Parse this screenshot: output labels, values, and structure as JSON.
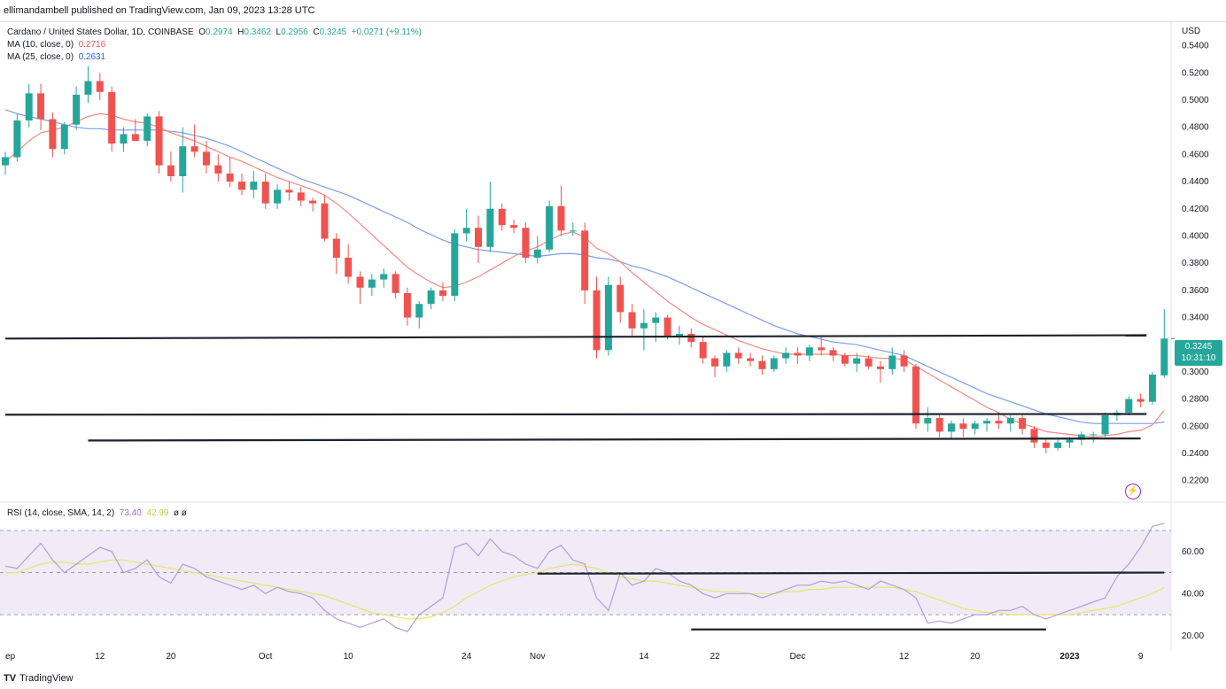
{
  "header": {
    "published": "ellimandambell published on TradingView.com, Jan 09, 2023 13:28 UTC"
  },
  "legend": {
    "symbol": "Cardano / United States Dollar, 1D, COINBASE",
    "o_label": "O",
    "o": "0.2974",
    "h_label": "H",
    "h": "0.3462",
    "l_label": "L",
    "l": "0.2956",
    "c_label": "C",
    "c": "0.3245",
    "change": "+0.0271 (+9.11%)",
    "ma10_label": "MA (10, close, 0)",
    "ma10_value": "0.2716",
    "ma25_label": "MA (25, close, 0)",
    "ma25_value": "0.2631"
  },
  "rsi_legend": {
    "label": "RSI (14, close, SMA, 14, 2)",
    "rsi": "73.40",
    "sma": "42.99",
    "extra": "ø ø"
  },
  "currency": "USD",
  "price_badge": {
    "price": "0.3245",
    "countdown": "10:31:10"
  },
  "footer": {
    "logo": "TV",
    "brand": "TradingView"
  },
  "colors": {
    "up": "#26a69a",
    "down": "#ef5350",
    "ma10": "#f28b82",
    "ma25": "#7b9cf0",
    "rsi": "#b39ddb",
    "rsi_sma": "#e6e66b"
  },
  "chart_data": [
    {
      "type": "candlestick",
      "title": "Cardano / United States Dollar, 1D, COINBASE",
      "ylim": [
        0.21,
        0.545
      ],
      "yticks": [
        "0.5400",
        "0.5200",
        "0.5000",
        "0.4800",
        "0.4600",
        "0.4400",
        "0.4200",
        "0.4000",
        "0.3800",
        "0.3600",
        "0.3400",
        "0.3200",
        "0.3000",
        "0.2800",
        "0.2600",
        "0.2400",
        "0.2200"
      ],
      "ytick_values": [
        0.54,
        0.52,
        0.5,
        0.48,
        0.46,
        0.44,
        0.42,
        0.4,
        0.38,
        0.36,
        0.34,
        0.32,
        0.3,
        0.28,
        0.26,
        0.24,
        0.22
      ],
      "xticks": [
        "ep",
        "12",
        "20",
        "Oct",
        "10",
        "24",
        "Nov",
        "14",
        "22",
        "Dec",
        "12",
        "20",
        "2023",
        "9"
      ],
      "xtick_index": [
        0,
        8,
        14,
        22,
        29,
        39,
        45,
        54,
        60,
        67,
        76,
        82,
        90,
        96
      ],
      "candles": [
        [
          0.452,
          0.462,
          0.445,
          0.458
        ],
        [
          0.458,
          0.49,
          0.455,
          0.485
        ],
        [
          0.485,
          0.512,
          0.48,
          0.505
        ],
        [
          0.505,
          0.512,
          0.478,
          0.486
        ],
        [
          0.486,
          0.491,
          0.458,
          0.464
        ],
        [
          0.464,
          0.484,
          0.46,
          0.482
        ],
        [
          0.482,
          0.51,
          0.478,
          0.504
        ],
        [
          0.504,
          0.525,
          0.498,
          0.514
        ],
        [
          0.514,
          0.52,
          0.5,
          0.506
        ],
        [
          0.506,
          0.51,
          0.462,
          0.468
        ],
        [
          0.468,
          0.48,
          0.462,
          0.475
        ],
        [
          0.475,
          0.486,
          0.47,
          0.47
        ],
        [
          0.47,
          0.49,
          0.466,
          0.488
        ],
        [
          0.488,
          0.492,
          0.446,
          0.452
        ],
        [
          0.452,
          0.462,
          0.44,
          0.444
        ],
        [
          0.444,
          0.48,
          0.432,
          0.466
        ],
        [
          0.466,
          0.482,
          0.458,
          0.462
        ],
        [
          0.462,
          0.47,
          0.446,
          0.452
        ],
        [
          0.452,
          0.46,
          0.44,
          0.446
        ],
        [
          0.446,
          0.458,
          0.436,
          0.44
        ],
        [
          0.44,
          0.446,
          0.43,
          0.434
        ],
        [
          0.434,
          0.448,
          0.428,
          0.44
        ],
        [
          0.44,
          0.446,
          0.42,
          0.424
        ],
        [
          0.424,
          0.438,
          0.42,
          0.434
        ],
        [
          0.434,
          0.44,
          0.426,
          0.432
        ],
        [
          0.432,
          0.436,
          0.422,
          0.426
        ],
        [
          0.426,
          0.428,
          0.418,
          0.424
        ],
        [
          0.424,
          0.43,
          0.396,
          0.398
        ],
        [
          0.398,
          0.402,
          0.372,
          0.384
        ],
        [
          0.384,
          0.394,
          0.365,
          0.37
        ],
        [
          0.37,
          0.374,
          0.35,
          0.362
        ],
        [
          0.362,
          0.372,
          0.356,
          0.368
        ],
        [
          0.368,
          0.376,
          0.362,
          0.372
        ],
        [
          0.372,
          0.374,
          0.354,
          0.358
        ],
        [
          0.358,
          0.362,
          0.334,
          0.34
        ],
        [
          0.34,
          0.352,
          0.332,
          0.35
        ],
        [
          0.35,
          0.362,
          0.346,
          0.36
        ],
        [
          0.36,
          0.366,
          0.352,
          0.356
        ],
        [
          0.356,
          0.405,
          0.352,
          0.402
        ],
        [
          0.402,
          0.42,
          0.396,
          0.406
        ],
        [
          0.406,
          0.415,
          0.38,
          0.392
        ],
        [
          0.392,
          0.44,
          0.388,
          0.42
        ],
        [
          0.42,
          0.424,
          0.404,
          0.408
        ],
        [
          0.408,
          0.412,
          0.402,
          0.406
        ],
        [
          0.406,
          0.41,
          0.38,
          0.384
        ],
        [
          0.384,
          0.4,
          0.38,
          0.39
        ],
        [
          0.39,
          0.426,
          0.388,
          0.422
        ],
        [
          0.422,
          0.437,
          0.4,
          0.404
        ],
        [
          0.404,
          0.41,
          0.4,
          0.404
        ],
        [
          0.404,
          0.41,
          0.35,
          0.36
        ],
        [
          0.36,
          0.37,
          0.31,
          0.316
        ],
        [
          0.316,
          0.37,
          0.312,
          0.364
        ],
        [
          0.364,
          0.37,
          0.336,
          0.344
        ],
        [
          0.344,
          0.35,
          0.326,
          0.332
        ],
        [
          0.332,
          0.346,
          0.316,
          0.336
        ],
        [
          0.336,
          0.344,
          0.322,
          0.34
        ],
        [
          0.34,
          0.342,
          0.324,
          0.326
        ],
        [
          0.326,
          0.334,
          0.32,
          0.328
        ],
        [
          0.328,
          0.332,
          0.318,
          0.322
        ],
        [
          0.322,
          0.326,
          0.306,
          0.31
        ],
        [
          0.31,
          0.312,
          0.296,
          0.304
        ],
        [
          0.304,
          0.316,
          0.3,
          0.314
        ],
        [
          0.314,
          0.318,
          0.306,
          0.31
        ],
        [
          0.31,
          0.314,
          0.304,
          0.308
        ],
        [
          0.308,
          0.312,
          0.298,
          0.302
        ],
        [
          0.302,
          0.312,
          0.3,
          0.31
        ],
        [
          0.31,
          0.318,
          0.306,
          0.314
        ],
        [
          0.314,
          0.318,
          0.306,
          0.312
        ],
        [
          0.312,
          0.32,
          0.308,
          0.318
        ],
        [
          0.318,
          0.326,
          0.312,
          0.316
        ],
        [
          0.316,
          0.318,
          0.308,
          0.312
        ],
        [
          0.312,
          0.314,
          0.304,
          0.306
        ],
        [
          0.306,
          0.314,
          0.3,
          0.31
        ],
        [
          0.31,
          0.312,
          0.302,
          0.304
        ],
        [
          0.304,
          0.308,
          0.292,
          0.302
        ],
        [
          0.302,
          0.318,
          0.298,
          0.312
        ],
        [
          0.312,
          0.316,
          0.3,
          0.304
        ],
        [
          0.304,
          0.306,
          0.258,
          0.262
        ],
        [
          0.262,
          0.274,
          0.256,
          0.266
        ],
        [
          0.266,
          0.268,
          0.252,
          0.256
        ],
        [
          0.256,
          0.264,
          0.25,
          0.262
        ],
        [
          0.262,
          0.266,
          0.252,
          0.258
        ],
        [
          0.258,
          0.264,
          0.254,
          0.262
        ],
        [
          0.262,
          0.266,
          0.256,
          0.264
        ],
        [
          0.264,
          0.268,
          0.258,
          0.262
        ],
        [
          0.262,
          0.268,
          0.256,
          0.266
        ],
        [
          0.266,
          0.268,
          0.254,
          0.258
        ],
        [
          0.258,
          0.26,
          0.244,
          0.248
        ],
        [
          0.248,
          0.25,
          0.24,
          0.244
        ],
        [
          0.244,
          0.25,
          0.242,
          0.248
        ],
        [
          0.248,
          0.252,
          0.244,
          0.25
        ],
        [
          0.25,
          0.256,
          0.246,
          0.254
        ],
        [
          0.254,
          0.256,
          0.248,
          0.254
        ],
        [
          0.254,
          0.27,
          0.252,
          0.268
        ],
        [
          0.268,
          0.272,
          0.264,
          0.27
        ],
        [
          0.27,
          0.282,
          0.268,
          0.28
        ],
        [
          0.28,
          0.284,
          0.274,
          0.278
        ],
        [
          0.278,
          0.3,
          0.276,
          0.298
        ],
        [
          0.2974,
          0.3462,
          0.2956,
          0.3245
        ]
      ],
      "ma10": [
        0.455,
        0.462,
        0.47,
        0.476,
        0.478,
        0.48,
        0.484,
        0.488,
        0.49,
        0.489,
        0.486,
        0.484,
        0.483,
        0.48,
        0.476,
        0.473,
        0.47,
        0.466,
        0.462,
        0.458,
        0.455,
        0.451,
        0.447,
        0.443,
        0.44,
        0.437,
        0.434,
        0.43,
        0.424,
        0.417,
        0.409,
        0.401,
        0.393,
        0.385,
        0.377,
        0.371,
        0.366,
        0.362,
        0.363,
        0.366,
        0.37,
        0.375,
        0.38,
        0.385,
        0.389,
        0.392,
        0.397,
        0.401,
        0.403,
        0.399,
        0.391,
        0.387,
        0.381,
        0.373,
        0.366,
        0.359,
        0.352,
        0.346,
        0.34,
        0.335,
        0.331,
        0.327,
        0.323,
        0.32,
        0.317,
        0.315,
        0.313,
        0.313,
        0.313,
        0.313,
        0.313,
        0.312,
        0.312,
        0.311,
        0.31,
        0.31,
        0.309,
        0.304,
        0.299,
        0.294,
        0.289,
        0.284,
        0.279,
        0.274,
        0.27,
        0.265,
        0.262,
        0.259,
        0.256,
        0.255,
        0.254,
        0.253,
        0.252,
        0.253,
        0.254,
        0.256,
        0.257,
        0.261,
        0.2716
      ],
      "ma25": [
        0.493,
        0.49,
        0.488,
        0.486,
        0.484,
        0.482,
        0.48,
        0.479,
        0.479,
        0.478,
        0.478,
        0.478,
        0.478,
        0.478,
        0.477,
        0.476,
        0.474,
        0.472,
        0.469,
        0.466,
        0.462,
        0.458,
        0.454,
        0.45,
        0.446,
        0.442,
        0.439,
        0.436,
        0.433,
        0.43,
        0.426,
        0.422,
        0.418,
        0.414,
        0.41,
        0.405,
        0.401,
        0.397,
        0.394,
        0.392,
        0.39,
        0.389,
        0.388,
        0.387,
        0.386,
        0.385,
        0.386,
        0.387,
        0.387,
        0.386,
        0.384,
        0.383,
        0.381,
        0.378,
        0.376,
        0.373,
        0.37,
        0.366,
        0.362,
        0.358,
        0.354,
        0.35,
        0.346,
        0.342,
        0.338,
        0.334,
        0.331,
        0.328,
        0.326,
        0.324,
        0.322,
        0.321,
        0.32,
        0.318,
        0.316,
        0.314,
        0.312,
        0.308,
        0.304,
        0.3,
        0.296,
        0.292,
        0.288,
        0.284,
        0.281,
        0.278,
        0.275,
        0.272,
        0.269,
        0.267,
        0.265,
        0.263,
        0.262,
        0.262,
        0.262,
        0.262,
        0.262,
        0.262,
        0.2631
      ],
      "hlines": [
        {
          "y1": 0.3245,
          "y2": 0.327,
          "x1": 0,
          "x2": 96.5
        },
        {
          "y1": 0.2685,
          "y2": 0.269,
          "x1": 0,
          "x2": 96.5
        },
        {
          "y1": 0.2495,
          "y2": 0.251,
          "x1": 7,
          "x2": 96
        }
      ]
    },
    {
      "type": "line",
      "title": "RSI (14, close, SMA, 14, 2)",
      "ylim": [
        17,
        78
      ],
      "yticks": [
        "60.00",
        "40.00",
        "20.00"
      ],
      "ytick_values": [
        60,
        40,
        20
      ],
      "band": [
        30,
        70
      ],
      "midline": 50,
      "series": [
        {
          "name": "RSI",
          "values": [
            53,
            52,
            58,
            64,
            56,
            50,
            54,
            58,
            62,
            60,
            50,
            52,
            56,
            48,
            45,
            54,
            52,
            48,
            46,
            44,
            42,
            44,
            40,
            43,
            41,
            40,
            38,
            32,
            28,
            26,
            24,
            26,
            28,
            24,
            22,
            30,
            34,
            38,
            62,
            64,
            58,
            66,
            60,
            58,
            54,
            52,
            60,
            63,
            56,
            54,
            38,
            32,
            50,
            44,
            46,
            52,
            50,
            46,
            44,
            40,
            38,
            40,
            40,
            40,
            38,
            40,
            42,
            44,
            44,
            46,
            45,
            46,
            44,
            42,
            46,
            44,
            42,
            38,
            26,
            27,
            26,
            28,
            30,
            30,
            32,
            32,
            34,
            30,
            28,
            30,
            32,
            34,
            36,
            38,
            48,
            54,
            62,
            72,
            73.4
          ]
        },
        {
          "name": "SMA",
          "values": [
            50,
            50,
            52,
            54,
            55,
            55,
            54,
            54,
            55,
            56,
            56,
            55,
            54,
            53,
            52,
            51,
            50,
            49,
            48,
            47,
            46,
            45,
            44,
            43,
            42,
            41,
            40,
            39,
            37,
            35,
            33,
            31,
            30,
            29,
            28,
            28,
            29,
            31,
            34,
            38,
            41,
            44,
            46,
            48,
            49,
            50,
            52,
            53,
            54,
            53,
            52,
            50,
            48,
            47,
            46,
            46,
            45,
            44,
            43,
            42,
            41,
            41,
            41,
            40,
            40,
            40,
            41,
            41,
            42,
            42,
            43,
            43,
            43,
            43,
            43,
            43,
            42,
            41,
            39,
            37,
            35,
            33,
            32,
            31,
            31,
            30,
            30,
            30,
            30,
            30,
            30,
            31,
            32,
            33,
            34,
            36,
            38,
            40,
            42.99
          ]
        }
      ],
      "hlines": [
        {
          "y1": 49.5,
          "y2": 50,
          "x1": 45,
          "x2": 98
        },
        {
          "y1": 23,
          "y2": 23,
          "x1": 58,
          "x2": 88
        }
      ]
    }
  ]
}
